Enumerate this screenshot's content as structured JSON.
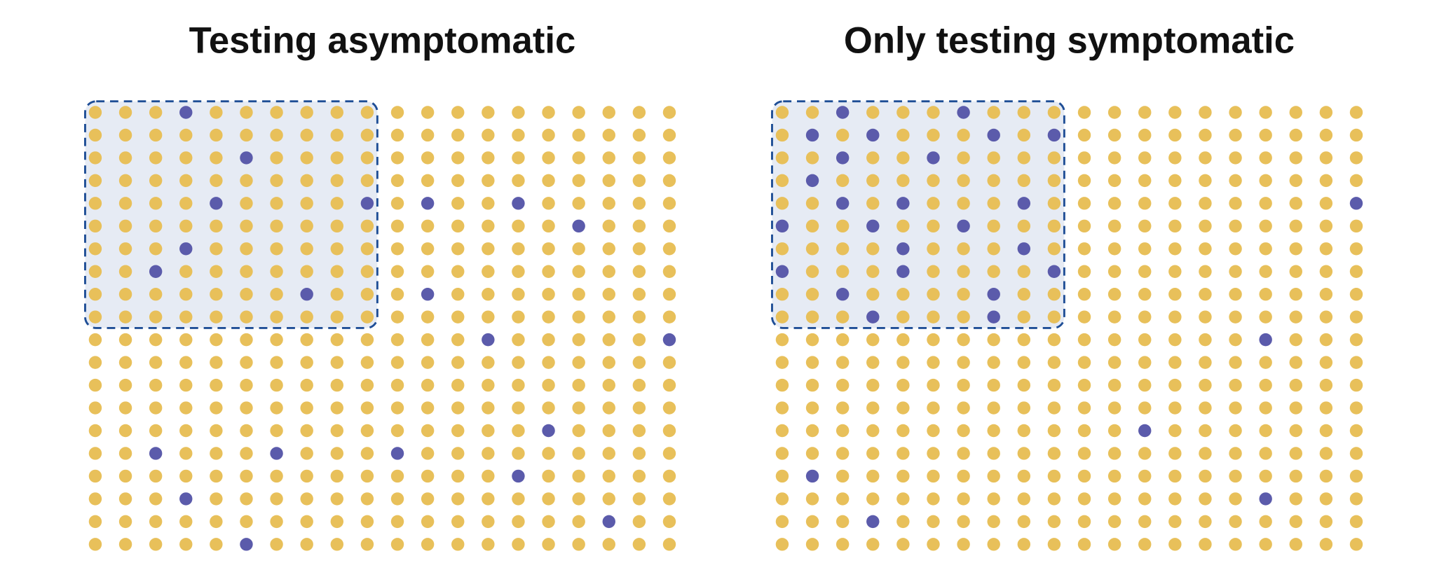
{
  "dot_color": "#e8c05a",
  "positive_color": "#5b5bab",
  "sample_fill": "#e6ebf4",
  "sample_stroke": "#1f4e96",
  "panels": [
    {
      "title": "Testing asymptomatic",
      "rows": 20,
      "cols": 20,
      "sampled_rows": 10,
      "sampled_cols": 10,
      "positives": [
        [
          0,
          3
        ],
        [
          2,
          5
        ],
        [
          4,
          4
        ],
        [
          4,
          9
        ],
        [
          4,
          11
        ],
        [
          4,
          14
        ],
        [
          5,
          16
        ],
        [
          6,
          3
        ],
        [
          7,
          2
        ],
        [
          8,
          7
        ],
        [
          8,
          11
        ],
        [
          10,
          13
        ],
        [
          10,
          19
        ],
        [
          14,
          15
        ],
        [
          15,
          2
        ],
        [
          15,
          6
        ],
        [
          15,
          10
        ],
        [
          16,
          14
        ],
        [
          17,
          3
        ],
        [
          18,
          17
        ],
        [
          19,
          5
        ]
      ]
    },
    {
      "title": "Only testing symptomatic",
      "rows": 20,
      "cols": 20,
      "sampled_rows": 10,
      "sampled_cols": 10,
      "positives": [
        [
          0,
          2
        ],
        [
          0,
          6
        ],
        [
          1,
          1
        ],
        [
          1,
          3
        ],
        [
          1,
          7
        ],
        [
          1,
          9
        ],
        [
          2,
          2
        ],
        [
          2,
          5
        ],
        [
          3,
          1
        ],
        [
          4,
          2
        ],
        [
          4,
          4
        ],
        [
          4,
          8
        ],
        [
          4,
          19
        ],
        [
          5,
          0
        ],
        [
          5,
          3
        ],
        [
          5,
          6
        ],
        [
          6,
          4
        ],
        [
          6,
          8
        ],
        [
          7,
          0
        ],
        [
          7,
          4
        ],
        [
          7,
          9
        ],
        [
          8,
          2
        ],
        [
          8,
          7
        ],
        [
          9,
          3
        ],
        [
          9,
          7
        ],
        [
          10,
          16
        ],
        [
          14,
          12
        ],
        [
          16,
          1
        ],
        [
          17,
          16
        ],
        [
          18,
          3
        ]
      ]
    }
  ]
}
